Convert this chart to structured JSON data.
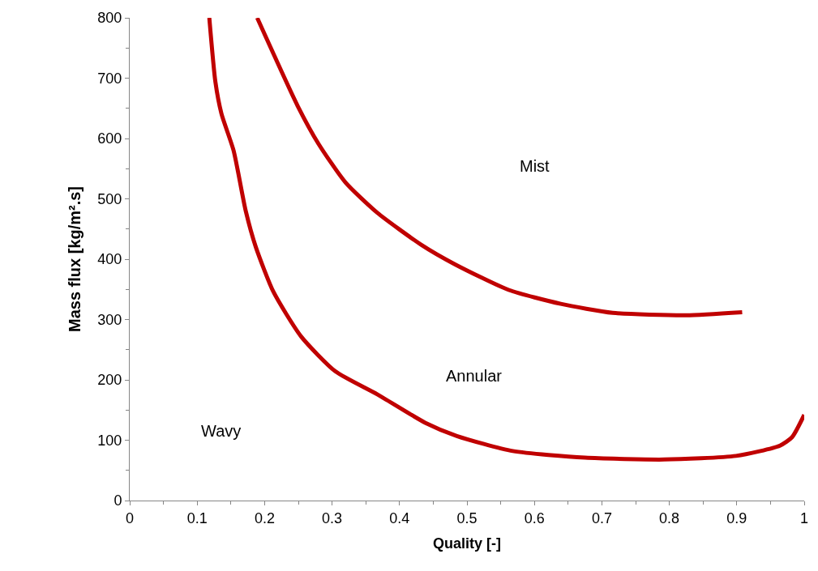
{
  "chart_data": {
    "type": "line",
    "xlabel": "Quality [-]",
    "ylabel": "Mass flux [kg/m².s]",
    "xlim": [
      0,
      1
    ],
    "ylim": [
      0,
      800
    ],
    "xticks": [
      0,
      0.1,
      0.2,
      0.3,
      0.4,
      0.5,
      0.6,
      0.7,
      0.8,
      0.9,
      1
    ],
    "yticks": [
      0,
      100,
      200,
      300,
      400,
      500,
      600,
      700,
      800
    ],
    "marker": "none",
    "line_style": "solid",
    "annotations": [
      "Mist",
      "Annular",
      "Wavy"
    ],
    "series": [
      {
        "color": "#c00000",
        "x": [
          0.189,
          0.249,
          0.28,
          0.32,
          0.367,
          0.432,
          0.483,
          0.562,
          0.639,
          0.716,
          0.825,
          0.908
        ],
        "values": [
          800,
          654,
          591,
          527,
          477,
          424,
          391,
          349,
          326,
          311,
          307,
          312
        ]
      },
      {
        "color": "#c00000",
        "x": [
          0.118,
          0.127,
          0.136,
          0.154,
          0.172,
          0.187,
          0.213,
          0.254,
          0.305,
          0.367,
          0.438,
          0.485,
          0.568,
          0.675,
          0.793,
          0.899,
          0.964,
          0.982,
          1.0
        ],
        "values": [
          800,
          694,
          641,
          580,
          480,
          420,
          346,
          272,
          214,
          176,
          129,
          107,
          82,
          71,
          68,
          74,
          91,
          105,
          142
        ]
      }
    ]
  }
}
